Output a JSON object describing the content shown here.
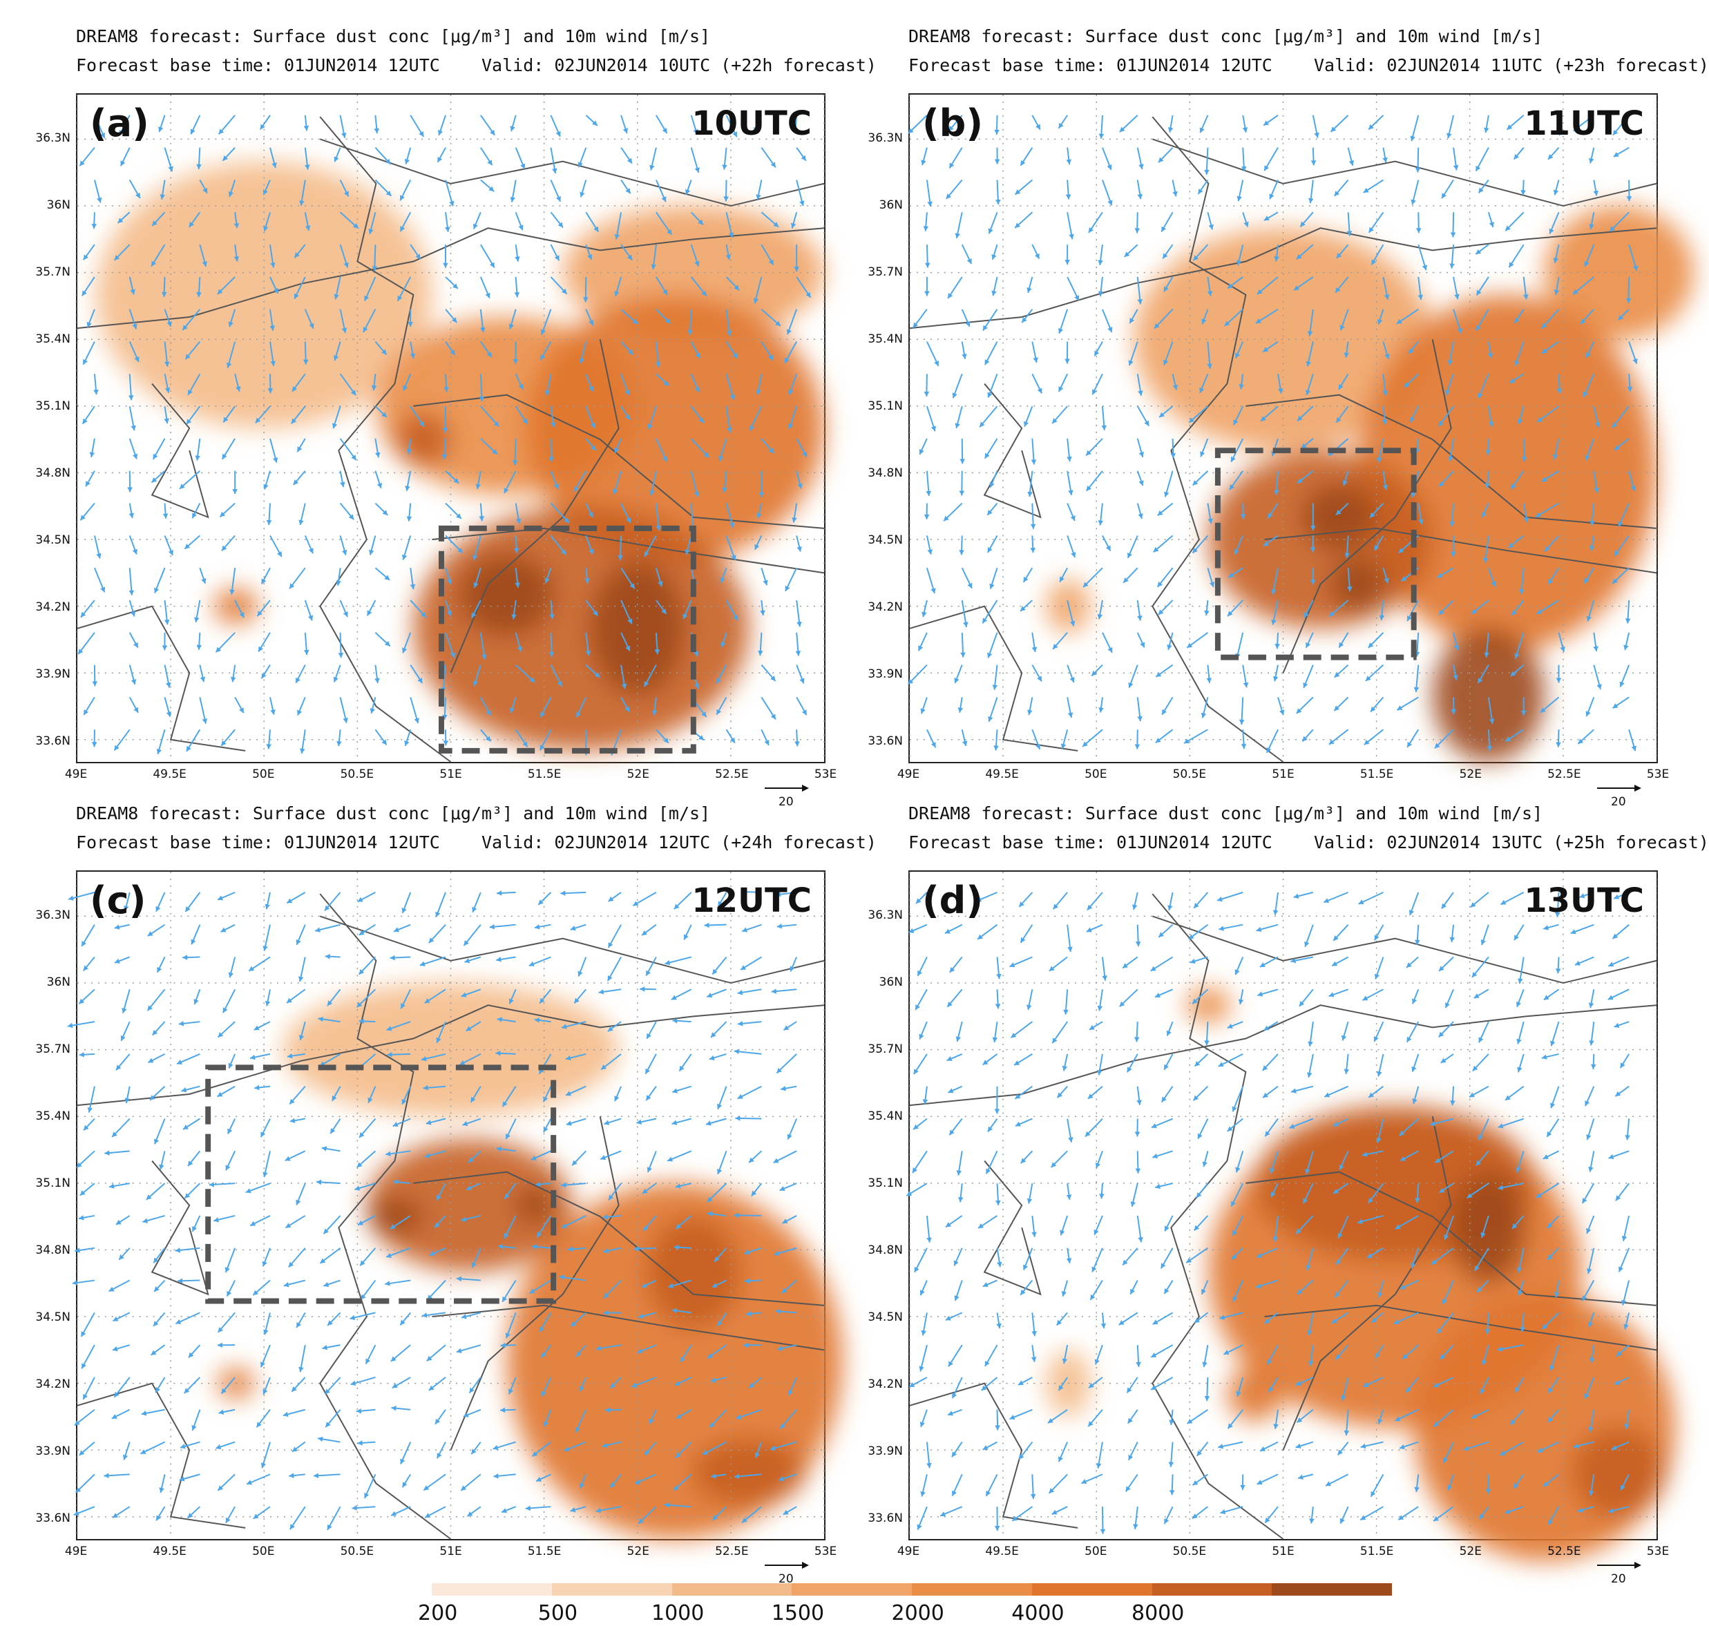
{
  "figure": {
    "panels": [
      {
        "id": "a",
        "header_line1": "DREAM8 forecast: Surface dust conc [μg/m³] and 10m wind [m/s]",
        "header_line2": "Forecast base time: 01JUN2014 12UTC    Valid: 02JUN2014 10UTC (+22h forecast)",
        "panel_label": "(a)",
        "time_label": "10UTC",
        "box": {
          "lon": [
            50.95,
            52.3
          ],
          "lat": [
            33.55,
            34.55
          ]
        },
        "plumes": [
          {
            "lon": 51.7,
            "lat": 34.1,
            "level": 6,
            "rx": 0.9,
            "ry": 0.55
          },
          {
            "lon": 51.3,
            "lat": 34.25,
            "level": 7,
            "rx": 0.25,
            "ry": 0.18
          },
          {
            "lon": 52.0,
            "lat": 34.1,
            "level": 7,
            "rx": 0.25,
            "ry": 0.3
          },
          {
            "lon": 52.2,
            "lat": 35.0,
            "level": 5,
            "rx": 0.8,
            "ry": 0.6
          },
          {
            "lon": 51.3,
            "lat": 35.1,
            "level": 4,
            "rx": 0.7,
            "ry": 0.4
          },
          {
            "lon": 50.85,
            "lat": 34.95,
            "level": 6,
            "rx": 0.15,
            "ry": 0.12
          },
          {
            "lon": 50.0,
            "lat": 35.6,
            "level": 2,
            "rx": 0.9,
            "ry": 0.6
          },
          {
            "lon": 49.85,
            "lat": 34.2,
            "level": 5,
            "rx": 0.12,
            "ry": 0.08
          },
          {
            "lon": 52.3,
            "lat": 35.7,
            "level": 3,
            "rx": 0.7,
            "ry": 0.3
          }
        ]
      },
      {
        "id": "b",
        "header_line1": "DREAM8 forecast: Surface dust conc [μg/m³] and 10m wind [m/s]",
        "header_line2": "Forecast base time: 01JUN2014 12UTC    Valid: 02JUN2014 11UTC (+23h forecast)",
        "panel_label": "(b)",
        "time_label": "11UTC",
        "box": {
          "lon": [
            50.65,
            51.7
          ],
          "lat": [
            33.97,
            34.9
          ]
        },
        "plumes": [
          {
            "lon": 51.2,
            "lat": 34.5,
            "level": 6,
            "rx": 0.6,
            "ry": 0.4
          },
          {
            "lon": 51.3,
            "lat": 34.6,
            "level": 7,
            "rx": 0.2,
            "ry": 0.15
          },
          {
            "lon": 51.4,
            "lat": 34.3,
            "level": 7,
            "rx": 0.15,
            "ry": 0.12
          },
          {
            "lon": 52.1,
            "lat": 33.8,
            "level": 7,
            "rx": 0.3,
            "ry": 0.3
          },
          {
            "lon": 52.2,
            "lat": 34.8,
            "level": 5,
            "rx": 0.8,
            "ry": 0.8
          },
          {
            "lon": 51.0,
            "lat": 35.4,
            "level": 3,
            "rx": 0.8,
            "ry": 0.5
          },
          {
            "lon": 49.85,
            "lat": 34.2,
            "level": 3,
            "rx": 0.12,
            "ry": 0.12
          },
          {
            "lon": 52.8,
            "lat": 35.7,
            "level": 4,
            "rx": 0.4,
            "ry": 0.3
          }
        ]
      },
      {
        "id": "c",
        "header_line1": "DREAM8 forecast: Surface dust conc [μg/m³] and 10m wind [m/s]",
        "header_line2": "Forecast base time: 01JUN2014 12UTC    Valid: 02JUN2014 12UTC (+24h forecast)",
        "panel_label": "(c)",
        "time_label": "12UTC",
        "box": {
          "lon": [
            49.7,
            51.55
          ],
          "lat": [
            34.57,
            35.62
          ]
        },
        "plumes": [
          {
            "lon": 51.1,
            "lat": 35.0,
            "level": 6,
            "rx": 0.55,
            "ry": 0.3
          },
          {
            "lon": 50.7,
            "lat": 34.95,
            "level": 7,
            "rx": 0.15,
            "ry": 0.08
          },
          {
            "lon": 51.45,
            "lat": 35.0,
            "level": 7,
            "rx": 0.1,
            "ry": 0.08
          },
          {
            "lon": 52.3,
            "lat": 34.7,
            "level": 6,
            "rx": 0.25,
            "ry": 0.25
          },
          {
            "lon": 52.6,
            "lat": 33.8,
            "level": 6,
            "rx": 0.3,
            "ry": 0.15
          },
          {
            "lon": 52.2,
            "lat": 34.3,
            "level": 5,
            "rx": 0.9,
            "ry": 0.8
          },
          {
            "lon": 49.85,
            "lat": 34.2,
            "level": 5,
            "rx": 0.1,
            "ry": 0.07
          },
          {
            "lon": 51.0,
            "lat": 35.7,
            "level": 2,
            "rx": 0.9,
            "ry": 0.3
          }
        ]
      },
      {
        "id": "d",
        "header_line1": "DREAM8 forecast: Surface dust conc [μg/m³] and 10m wind [m/s]",
        "header_line2": "Forecast base time: 01JUN2014 12UTC    Valid: 02JUN2014 13UTC (+25h forecast)",
        "panel_label": "(d)",
        "time_label": "13UTC",
        "box": null,
        "plumes": [
          {
            "lon": 51.6,
            "lat": 35.1,
            "level": 6,
            "rx": 0.75,
            "ry": 0.35
          },
          {
            "lon": 52.1,
            "lat": 34.9,
            "level": 7,
            "rx": 0.2,
            "ry": 0.25
          },
          {
            "lon": 51.6,
            "lat": 34.7,
            "level": 5,
            "rx": 1.0,
            "ry": 0.7
          },
          {
            "lon": 52.4,
            "lat": 34.0,
            "level": 5,
            "rx": 0.7,
            "ry": 0.6
          },
          {
            "lon": 50.85,
            "lat": 34.15,
            "level": 5,
            "rx": 0.15,
            "ry": 0.12
          },
          {
            "lon": 50.6,
            "lat": 35.9,
            "level": 4,
            "rx": 0.12,
            "ry": 0.08
          },
          {
            "lon": 49.85,
            "lat": 34.2,
            "level": 2,
            "rx": 0.12,
            "ry": 0.15
          },
          {
            "lon": 52.8,
            "lat": 33.8,
            "level": 6,
            "rx": 0.25,
            "ry": 0.2
          }
        ]
      }
    ],
    "lat_ticks": [
      "36.3N",
      "36N",
      "35.7N",
      "35.4N",
      "35.1N",
      "34.8N",
      "34.5N",
      "34.2N",
      "33.9N",
      "33.6N"
    ],
    "lat_values": [
      36.3,
      36.0,
      35.7,
      35.4,
      35.1,
      34.8,
      34.5,
      34.2,
      33.9,
      33.6
    ],
    "lon_ticks": [
      "49E",
      "49.5E",
      "50E",
      "50.5E",
      "51E",
      "51.5E",
      "52E",
      "52.5E",
      "53E"
    ],
    "lon_values": [
      49.0,
      49.5,
      50.0,
      50.5,
      51.0,
      51.5,
      52.0,
      52.5,
      53.0
    ],
    "lat_range": [
      33.5,
      36.5
    ],
    "lon_range": [
      49.0,
      53.0
    ],
    "ref_vector_label": "20",
    "colorbar": {
      "labels": [
        "200",
        "500",
        "1000",
        "1500",
        "2000",
        "4000",
        "8000"
      ],
      "colors": [
        "#fbe8d8",
        "#f8d4b4",
        "#f4bb8a",
        "#f0a467",
        "#ea8d47",
        "#e0762e",
        "#c65f22",
        "#9e4a1c"
      ]
    },
    "colors": {
      "wind_arrow": "#4da6e8",
      "box_border": "#555555",
      "boundary": "#555555"
    }
  }
}
